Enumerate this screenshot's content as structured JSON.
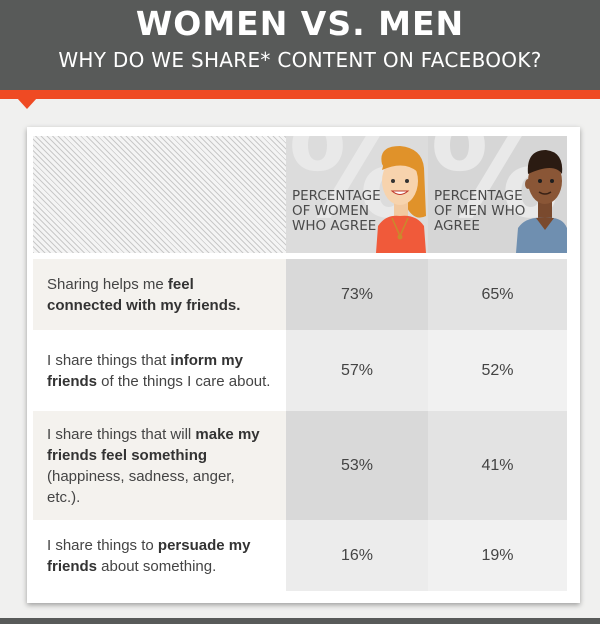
{
  "header": {
    "title": "WOMEN VS. MEN",
    "subtitle": "WHY DO WE SHARE* CONTENT ON FACEBOOK?"
  },
  "chart_data": {
    "type": "table",
    "columns": [
      {
        "label": "PERCENTAGE OF WOMEN WHO AGREE"
      },
      {
        "label": "PERCENTAGE OF MEN WHO AGREE"
      }
    ],
    "rows": [
      {
        "label_parts": [
          [
            "Sharing helps me ",
            false
          ],
          [
            "feel connected with my friends.",
            true
          ]
        ],
        "women": "73%",
        "men": "65%"
      },
      {
        "label_parts": [
          [
            "I share things that ",
            false
          ],
          [
            "inform my friends",
            true
          ],
          [
            " of the things I care about.",
            false
          ]
        ],
        "women": "57%",
        "men": "52%"
      },
      {
        "label_parts": [
          [
            "I share things that will ",
            false
          ],
          [
            "make my friends feel something",
            true
          ],
          [
            " (happiness, sadness, anger, etc.).",
            false
          ]
        ],
        "women": "53%",
        "men": "41%"
      },
      {
        "label_parts": [
          [
            "I share things to ",
            false
          ],
          [
            "persuade my friends",
            true
          ],
          [
            " about something.",
            false
          ]
        ],
        "women": "16%",
        "men": "19%"
      }
    ]
  },
  "colors": {
    "header_bg": "#585a59",
    "accent": "#ef4a23",
    "woman_hair": "#e0922a",
    "woman_top": "#f05a3a",
    "man_skin": "#8a5636",
    "man_shirt": "#6f8fb0"
  }
}
